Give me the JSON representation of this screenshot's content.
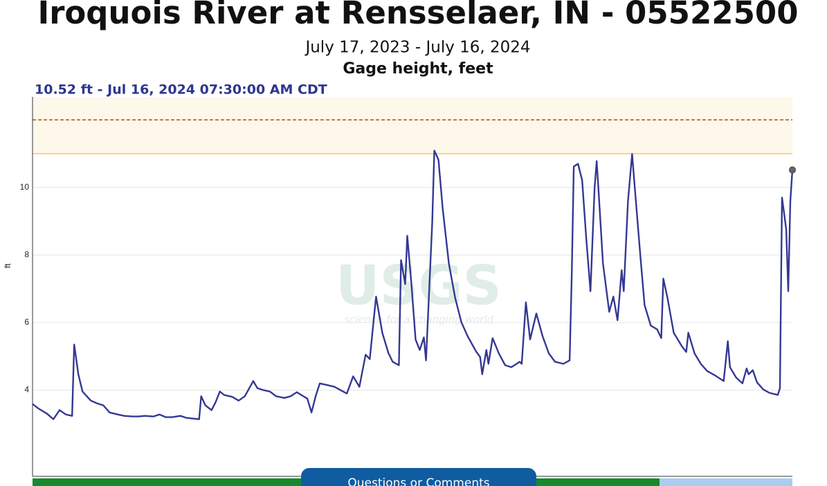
{
  "chart_data": {
    "type": "line",
    "title": "Iroquois River at Rensselaer, IN - 05522500",
    "subtitle": "July 17, 2023 - July 16, 2024",
    "series_label": "Gage height, feet",
    "current_reading": "10.52 ft - Jul 16, 2024 07:30:00 AM CDT",
    "y_label": "ft",
    "watermark": "USGS",
    "watermark_tagline": "science for a changing world",
    "button": "Questions or Comments",
    "color": "#343893",
    "xlim": [
      0,
      365
    ],
    "ylim": [
      1.45,
      12.68
    ],
    "yticks": [
      4,
      6,
      8,
      10
    ],
    "grid": true,
    "threshold_band": {
      "from": 11,
      "color": "#fdf8ea",
      "edge_color": "#f6c66e"
    },
    "reference_line": {
      "value": 12,
      "color": "#b24b14"
    },
    "x": [
      0,
      3,
      7,
      10,
      13,
      16,
      19,
      20,
      22,
      24,
      28,
      31,
      34,
      37,
      41,
      44,
      48,
      51,
      54,
      58,
      61,
      64,
      67,
      71,
      74,
      77,
      80,
      81,
      83,
      86,
      88,
      90,
      92,
      96,
      99,
      102,
      106,
      108,
      111,
      114,
      117,
      121,
      124,
      127,
      129,
      132,
      134,
      136,
      138,
      141,
      145,
      148,
      151,
      154,
      157,
      160,
      162,
      165,
      168,
      171,
      173,
      176,
      177,
      179,
      180,
      182,
      184,
      186,
      188,
      189,
      192,
      193,
      195,
      197,
      200,
      203,
      206,
      209,
      213,
      215,
      216,
      218,
      219,
      221,
      224,
      227,
      230,
      234,
      235,
      237,
      239,
      242,
      245,
      248,
      251,
      255,
      258,
      259,
      260,
      262,
      264,
      266,
      268,
      270,
      271,
      272,
      274,
      277,
      279,
      281,
      283,
      284,
      286,
      288,
      289,
      292,
      294,
      297,
      300,
      302,
      303,
      305,
      308,
      312,
      314,
      315,
      318,
      321,
      324,
      328,
      332,
      334,
      335,
      338,
      341,
      343,
      344,
      346,
      348,
      351,
      354,
      358,
      359,
      360,
      362,
      363,
      364,
      365
    ],
    "values": [
      3.59,
      3.45,
      3.3,
      3.14,
      3.41,
      3.28,
      3.24,
      5.35,
      4.47,
      3.96,
      3.69,
      3.61,
      3.55,
      3.34,
      3.28,
      3.24,
      3.22,
      3.22,
      3.24,
      3.22,
      3.28,
      3.2,
      3.2,
      3.24,
      3.18,
      3.16,
      3.14,
      3.82,
      3.55,
      3.41,
      3.65,
      3.96,
      3.86,
      3.8,
      3.69,
      3.82,
      4.27,
      4.06,
      4.0,
      3.96,
      3.82,
      3.77,
      3.82,
      3.94,
      3.86,
      3.75,
      3.34,
      3.82,
      4.2,
      4.16,
      4.1,
      4.0,
      3.9,
      4.41,
      4.1,
      5.05,
      4.92,
      6.77,
      5.7,
      5.09,
      4.84,
      4.74,
      7.85,
      7.14,
      8.57,
      7.14,
      5.5,
      5.19,
      5.56,
      4.88,
      8.98,
      11.09,
      10.82,
      9.39,
      7.75,
      6.73,
      6.01,
      5.6,
      5.15,
      4.98,
      4.47,
      5.19,
      4.78,
      5.54,
      5.09,
      4.74,
      4.68,
      4.84,
      4.78,
      6.6,
      5.5,
      6.27,
      5.6,
      5.09,
      4.84,
      4.78,
      4.88,
      7.34,
      10.62,
      10.7,
      10.21,
      8.47,
      6.93,
      10.0,
      10.78,
      9.8,
      7.75,
      6.32,
      6.77,
      6.07,
      7.55,
      6.93,
      9.59,
      10.99,
      10.21,
      7.95,
      6.52,
      5.91,
      5.8,
      5.54,
      7.3,
      6.73,
      5.7,
      5.29,
      5.13,
      5.7,
      5.09,
      4.78,
      4.57,
      4.43,
      4.27,
      5.45,
      4.68,
      4.37,
      4.2,
      4.64,
      4.47,
      4.59,
      4.23,
      4.02,
      3.92,
      3.86,
      4.06,
      9.7,
      8.77,
      6.93,
      9.59,
      10.52
    ]
  }
}
